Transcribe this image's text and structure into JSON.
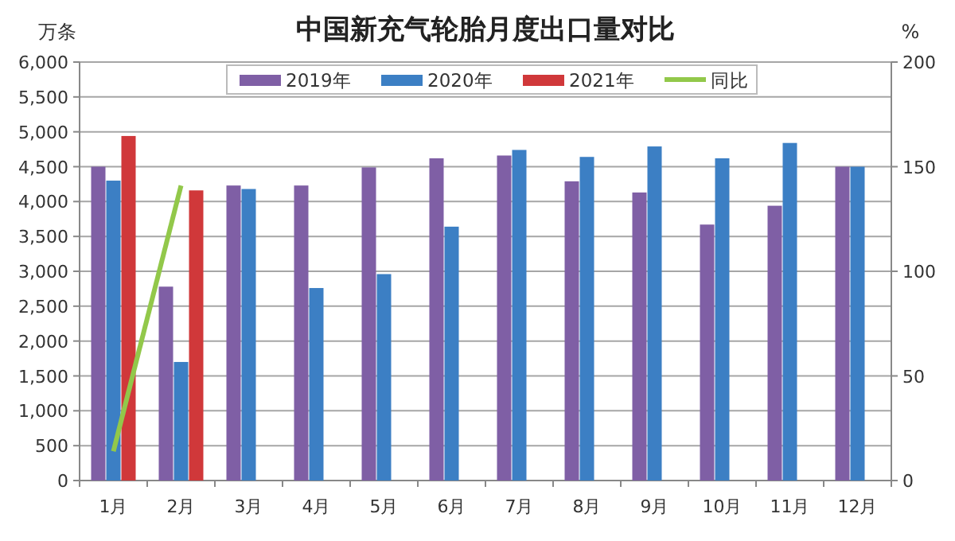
{
  "chart_data": {
    "type": "bar",
    "title": "中国新充气轮胎月度出口量对比",
    "ylabel": "万条",
    "y2label": "%",
    "categories": [
      "1月",
      "2月",
      "3月",
      "4月",
      "5月",
      "6月",
      "7月",
      "8月",
      "9月",
      "10月",
      "11月",
      "12月"
    ],
    "series": [
      {
        "name": "2019年",
        "color": "#7f5fa5",
        "values": [
          4500,
          2780,
          4230,
          4230,
          4490,
          4620,
          4660,
          4290,
          4130,
          3670,
          3940,
          4500
        ]
      },
      {
        "name": "2020年",
        "color": "#3c7fc4",
        "values": [
          4300,
          1700,
          4180,
          2760,
          2960,
          3640,
          4740,
          4640,
          4790,
          4620,
          4840,
          4500
        ]
      },
      {
        "name": "2021年",
        "color": "#d0383a",
        "values": [
          4940,
          4160,
          null,
          null,
          null,
          null,
          null,
          null,
          null,
          null,
          null,
          null
        ]
      },
      {
        "name": "同比",
        "color": "#92c84a",
        "type": "line",
        "axis": "y2",
        "marker": "none",
        "values": [
          14,
          141,
          null,
          null,
          null,
          null,
          null,
          null,
          null,
          null,
          null,
          null
        ]
      }
    ],
    "ylim": [
      0,
      6000
    ],
    "yticks": [
      {
        "value": 0,
        "label": "0"
      },
      {
        "value": 500,
        "label": "500"
      },
      {
        "value": 1000,
        "label": "1,000"
      },
      {
        "value": 1500,
        "label": "1,500"
      },
      {
        "value": 2000,
        "label": "2,000"
      },
      {
        "value": 2500,
        "label": "2,500"
      },
      {
        "value": 3000,
        "label": "3,000"
      },
      {
        "value": 3500,
        "label": "3,500"
      },
      {
        "value": 4000,
        "label": "4,000"
      },
      {
        "value": 4500,
        "label": "4,500"
      },
      {
        "value": 5000,
        "label": "5,000"
      },
      {
        "value": 5500,
        "label": "5,500"
      },
      {
        "value": 6000,
        "label": "6,000"
      }
    ],
    "y2lim": [
      0,
      200
    ],
    "y2ticks": [
      0,
      50,
      100,
      150,
      200
    ],
    "grid": "y",
    "legend": "top"
  }
}
